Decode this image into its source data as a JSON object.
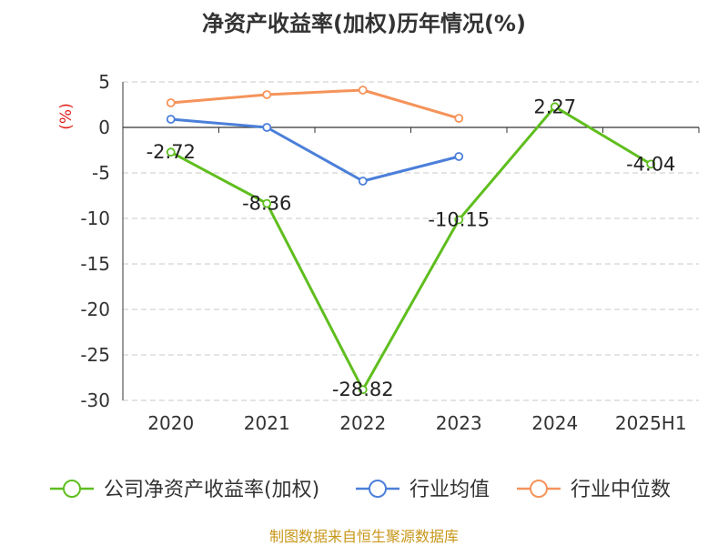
{
  "chart_data": {
    "type": "line",
    "title": "净资产收益率(加权)历年情况(%)",
    "ylabel": "(%)",
    "categories": [
      "2020",
      "2021",
      "2022",
      "2023",
      "2024",
      "2025H1"
    ],
    "ylim": [
      -30,
      5
    ],
    "yticks": [
      5,
      0,
      -5,
      -10,
      -15,
      -20,
      -25,
      -30
    ],
    "grid": true,
    "legend_position": "bottom",
    "series": [
      {
        "name": "公司净资产收益率(加权)",
        "color": "#5fbe1e",
        "values": [
          -2.72,
          -8.36,
          -28.82,
          -10.15,
          2.27,
          -4.04
        ],
        "show_labels": true
      },
      {
        "name": "行业均值",
        "color": "#4b7fd9",
        "values": [
          0.9,
          0.0,
          -5.9,
          -3.2,
          null,
          null
        ],
        "show_labels": false
      },
      {
        "name": "行业中位数",
        "color": "#f5935a",
        "values": [
          2.7,
          3.6,
          4.1,
          1.0,
          null,
          null
        ],
        "show_labels": false
      }
    ],
    "data_labels": [
      "-2.72",
      "-8.36",
      "-28.82",
      "-10.15",
      "2.27",
      "-4.04"
    ]
  },
  "source": "制图数据来自恒生聚源数据库"
}
